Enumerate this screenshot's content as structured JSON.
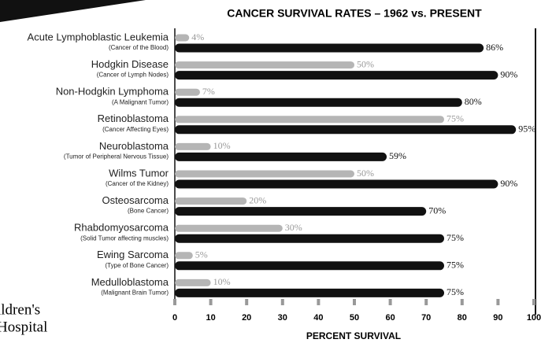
{
  "chart_data": {
    "type": "bar",
    "orientation": "horizontal",
    "title": "CANCER SURVIVAL RATES – 1962 vs. PRESENT",
    "xlabel": "PERCENT SURVIVAL",
    "categories": [
      "Acute Lymphoblastic Leukemia",
      "Hodgkin Disease",
      "Non-Hodgkin Lymphoma",
      "Retinoblastoma",
      "Neuroblastoma",
      "Wilms Tumor",
      "Osteosarcoma",
      "Rhabdomyosarcoma",
      "Ewing Sarcoma",
      "Medulloblastoma"
    ],
    "category_notes": [
      "(Cancer of the Blood)",
      "(Cancer of Lymph Nodes)",
      "(A Malignant Tumor)",
      "(Cancer Affecting Eyes)",
      "(Tumor of Peripheral Nervous Tissue)",
      "(Cancer of the Kidney)",
      "(Bone Cancer)",
      "(Solid Tumor affecting muscles)",
      "(Type of Bone Cancer)",
      "(Malignant Brain Tumor)"
    ],
    "series": [
      {
        "color": "#b5b5b5",
        "values": [
          4,
          50,
          7,
          75,
          10,
          50,
          20,
          30,
          5,
          10
        ],
        "value_labels": [
          "4%",
          "50%",
          "7%",
          "75%",
          "10%",
          "50%",
          "20%",
          "30%",
          "5%",
          "10%"
        ]
      },
      {
        "color": "#111111",
        "values": [
          86,
          90,
          80,
          95,
          59,
          90,
          70,
          75,
          75,
          75
        ],
        "value_labels": [
          "86%",
          "90%",
          "80%",
          "95%",
          "59%",
          "90%",
          "70%",
          "75%",
          "75%",
          "75%"
        ]
      }
    ],
    "xlim": [
      0,
      100
    ],
    "xticks": [
      0,
      10,
      20,
      30,
      40,
      50,
      60,
      70,
      80,
      90,
      100
    ],
    "logo": [
      "ildren's",
      "Hospital"
    ]
  }
}
